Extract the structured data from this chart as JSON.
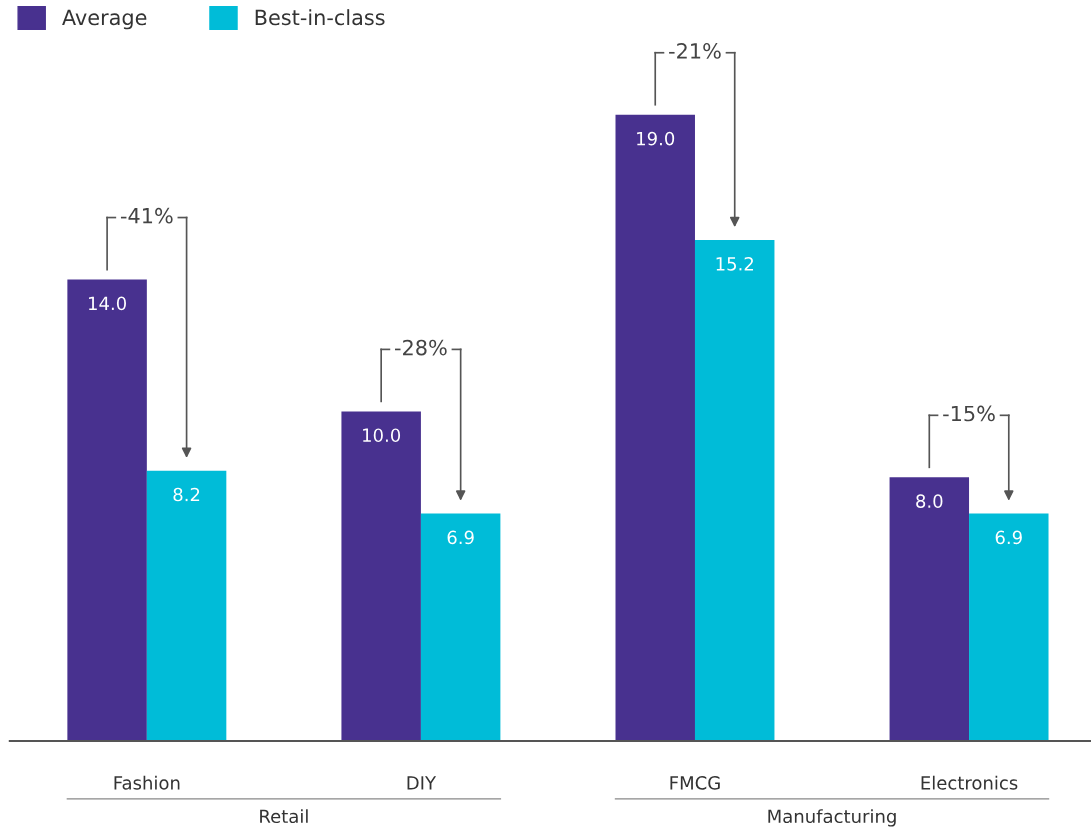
{
  "chart_data": {
    "type": "bar",
    "categories": [
      "Fashion",
      "DIY",
      "FMCG",
      "Electronics"
    ],
    "series": [
      {
        "name": "Average",
        "color": "#48318f",
        "values": [
          14,
          10,
          19,
          8
        ],
        "value_labels": [
          "14.0",
          "10.0",
          "19.0",
          "8.0"
        ]
      },
      {
        "name": "Best-in-class",
        "color": "#00bcd8",
        "values": [
          8.2,
          6.9,
          15.2,
          6.9
        ],
        "value_labels": [
          "8.2",
          "6.9",
          "15.2",
          "6.9"
        ]
      }
    ],
    "legend": "top left",
    "grid": false,
    "annotations": [
      {
        "text": "-41%",
        "x": "Fashion",
        "y": 14
      },
      {
        "text": "-28%",
        "x": "DIY",
        "y": 10
      },
      {
        "text": "-21%",
        "x": "FMCG",
        "y": 19
      },
      {
        "text": "-15%",
        "x": "Electronics",
        "y": 8
      },
      "Retail",
      "Manufacturing"
    ]
  }
}
